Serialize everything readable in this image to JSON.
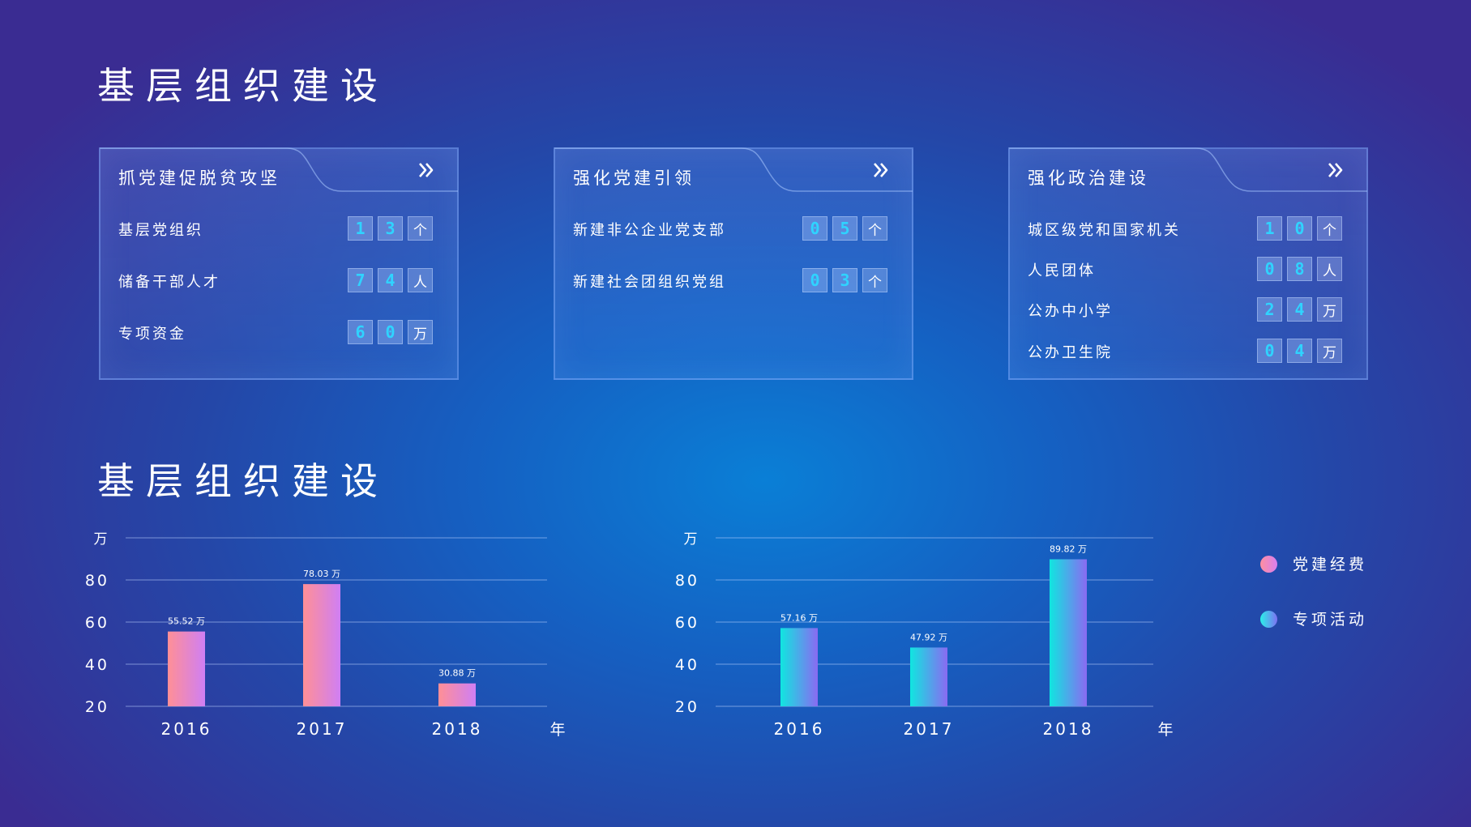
{
  "titles": {
    "top": "基层组织建设",
    "bottom": "基层组织建设"
  },
  "panels": [
    {
      "title": "抓党建促脱贫攻坚",
      "rows": [
        {
          "label": "基层党组织",
          "digits": [
            "1",
            "3"
          ],
          "unit": "个"
        },
        {
          "label": "储备干部人才",
          "digits": [
            "7",
            "4"
          ],
          "unit": "人"
        },
        {
          "label": "专项资金",
          "digits": [
            "6",
            "0"
          ],
          "unit": "万"
        }
      ]
    },
    {
      "title": "强化党建引领",
      "rows": [
        {
          "label": "新建非公企业党支部",
          "digits": [
            "0",
            "5"
          ],
          "unit": "个"
        },
        {
          "label": "新建社会团组织党组",
          "digits": [
            "0",
            "3"
          ],
          "unit": "个"
        }
      ]
    },
    {
      "title": "强化政治建设",
      "rows": [
        {
          "label": "城区级党和国家机关",
          "digits": [
            "1",
            "0"
          ],
          "unit": "个"
        },
        {
          "label": "人民团体",
          "digits": [
            "0",
            "8"
          ],
          "unit": "人"
        },
        {
          "label": "公办中小学",
          "digits": [
            "2",
            "4"
          ],
          "unit": "万"
        },
        {
          "label": "公办卫生院",
          "digits": [
            "0",
            "4"
          ],
          "unit": "万"
        }
      ]
    }
  ],
  "legend": [
    {
      "label": "党建经费",
      "color": "#f48fb1"
    },
    {
      "label": "专项活动",
      "color": "#29d9f0"
    }
  ],
  "chart_data": [
    {
      "type": "bar",
      "categories": [
        "2016",
        "2017",
        "2018"
      ],
      "series": [
        {
          "name": "党建经费",
          "values": [
            55.52,
            78.03,
            30.88
          ],
          "value_labels": [
            "55.52 万",
            "78.03 万",
            "30.88 万"
          ]
        }
      ],
      "yticks": [
        "20",
        "40",
        "60",
        "80"
      ],
      "ylabel": "万",
      "xlabel": "年",
      "ylim": [
        20,
        100
      ],
      "gradient": [
        "#ff8f96",
        "#cf7ff4"
      ]
    },
    {
      "type": "bar",
      "categories": [
        "2016",
        "2017",
        "2018"
      ],
      "series": [
        {
          "name": "专项活动",
          "values": [
            57.16,
            47.92,
            89.82
          ],
          "value_labels": [
            "57.16 万",
            "47.92 万",
            "89.82 万"
          ]
        }
      ],
      "yticks": [
        "20",
        "40",
        "60",
        "80"
      ],
      "ylabel": "万",
      "xlabel": "年",
      "ylim": [
        20,
        100
      ],
      "gradient": [
        "#10e6e0",
        "#8a6af2"
      ]
    }
  ]
}
